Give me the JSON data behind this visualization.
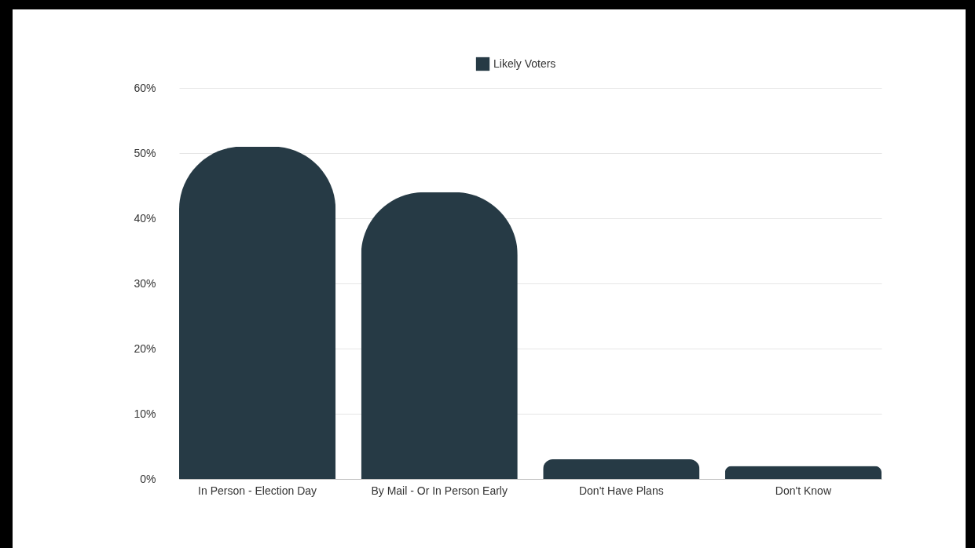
{
  "chart_data": {
    "type": "bar",
    "categories": [
      "In Person - Election Day",
      "By Mail - Or In Person Early",
      "Don't Have Plans",
      "Don't Know"
    ],
    "series": [
      {
        "name": "Likely Voters",
        "color": "#263a45",
        "values": [
          51,
          44,
          3,
          2
        ]
      }
    ],
    "ylim": [
      0,
      60
    ],
    "yticks": [
      {
        "value": 0,
        "label": "0%"
      },
      {
        "value": 10,
        "label": "10%"
      },
      {
        "value": 20,
        "label": "20%"
      },
      {
        "value": 30,
        "label": "30%"
      },
      {
        "value": 40,
        "label": "40%"
      },
      {
        "value": 50,
        "label": "50%"
      },
      {
        "value": 60,
        "label": "60%"
      }
    ],
    "grid": "y",
    "legend": "top"
  }
}
